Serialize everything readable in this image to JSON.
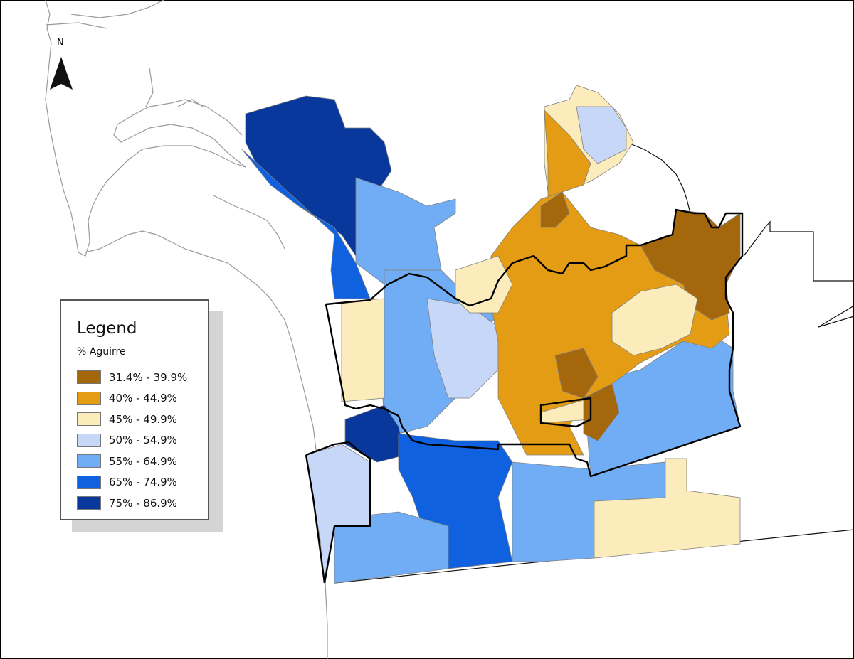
{
  "north_label": "N",
  "legend": {
    "title": "Legend",
    "subtitle": "% Aguirre",
    "classes": [
      {
        "label": "31.4% - 39.9%",
        "color": "#a5670c"
      },
      {
        "label": "40% - 44.9%",
        "color": "#e49c14"
      },
      {
        "label": "45% - 49.9%",
        "color": "#fcebbb"
      },
      {
        "label": "50% - 54.9%",
        "color": "#c6d7f7"
      },
      {
        "label": "55% - 64.9%",
        "color": "#70adf4"
      },
      {
        "label": "65% - 74.9%",
        "color": "#0f61e0"
      },
      {
        "label": "75% - 86.9%",
        "color": "#08389c"
      }
    ]
  }
}
